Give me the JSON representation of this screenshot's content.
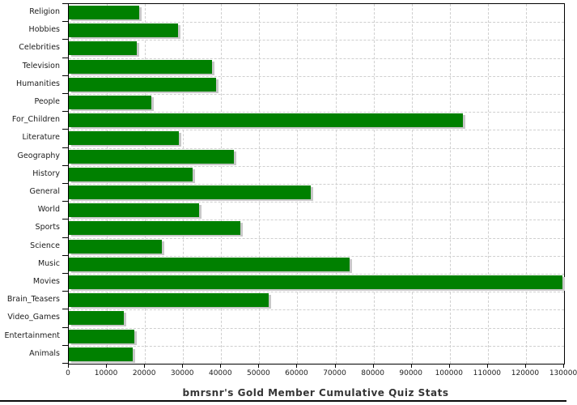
{
  "chart_data": {
    "type": "bar",
    "orientation": "horizontal",
    "title": "bmrsnr's Gold Member Cumulative Quiz Stats",
    "categories": [
      "Religion",
      "Hobbies",
      "Celebrities",
      "Television",
      "Humanities",
      "People",
      "For_Children",
      "Literature",
      "Geography",
      "History",
      "General",
      "World",
      "Sports",
      "Science",
      "Music",
      "Movies",
      "Brain_Teasers",
      "Video_Games",
      "Entertainment",
      "Animals"
    ],
    "values": [
      18500,
      28600,
      17900,
      37700,
      38600,
      21600,
      103500,
      28800,
      43300,
      32500,
      63500,
      34300,
      45100,
      24400,
      73800,
      129500,
      52400,
      14500,
      17300,
      16800
    ],
    "xlim": [
      0,
      130000
    ],
    "x_tick_interval": 10000,
    "x_tick_labels": [
      "0",
      "10000",
      "20000",
      "30000",
      "40000",
      "50000",
      "60000",
      "70000",
      "80000",
      "90000",
      "100000",
      "110000",
      "120000",
      "130000"
    ],
    "grid": "dashed-both-axes",
    "legend": "none",
    "bar_color": "#008000",
    "shadow_color": "#c8c8c8",
    "grid_color": "#cfcfcf",
    "axis_color": "#000000",
    "title_color": "#353535",
    "background_color": "#ffffff"
  }
}
